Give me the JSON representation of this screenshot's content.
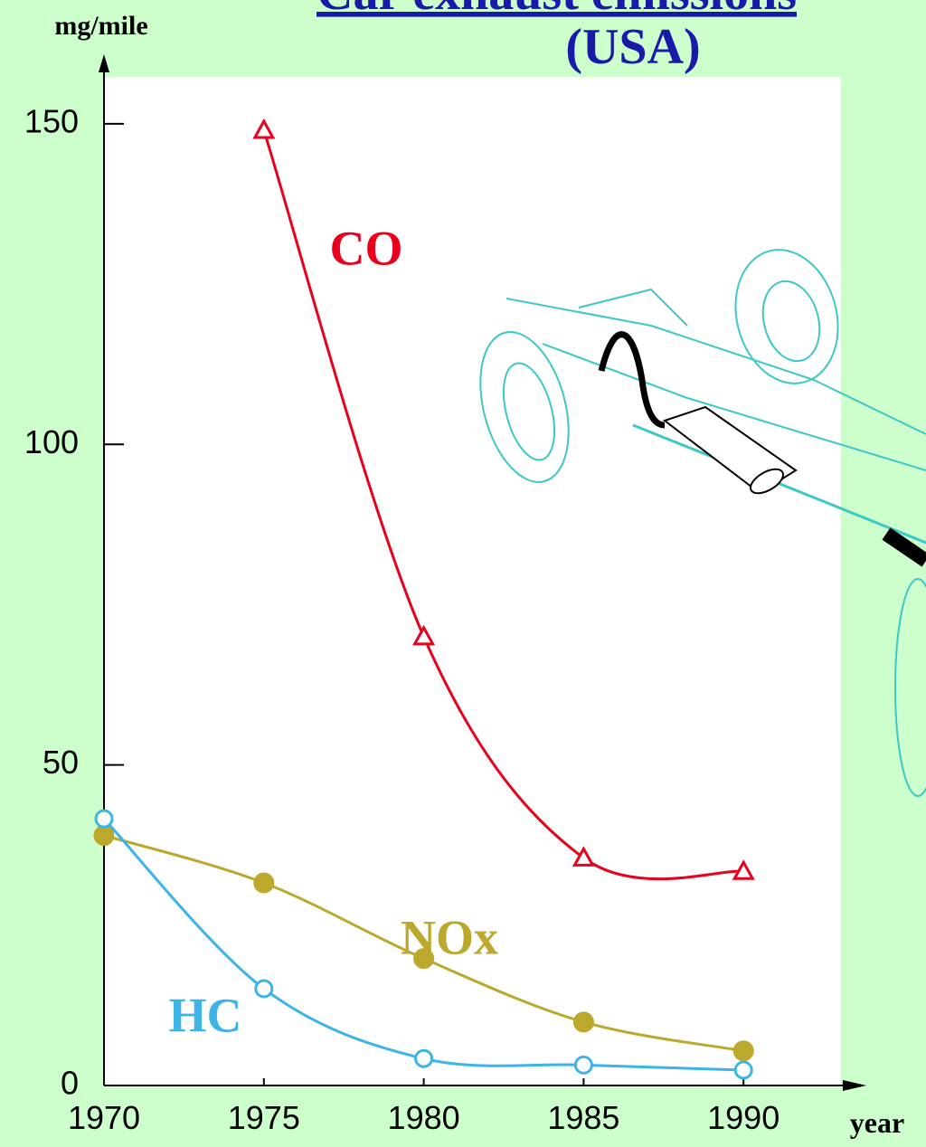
{
  "chart_data": {
    "type": "line",
    "title": "Car exhaust emissions",
    "subtitle": "(USA)",
    "y_label": "mg/mile",
    "x_label": "year",
    "x": [
      1970,
      1975,
      1980,
      1985,
      1990
    ],
    "series": [
      {
        "name": "CO",
        "color": "#e8001c",
        "marker": "triangle-open",
        "values": [
          null,
          149,
          70,
          35.5,
          33.4
        ]
      },
      {
        "name": "NOx",
        "color": "#bba82c",
        "marker": "circle-filled",
        "values": [
          39,
          31.6,
          19.8,
          9.9,
          5.4
        ]
      },
      {
        "name": "HC",
        "color": "#3cb4e6",
        "marker": "circle-open",
        "values": [
          41.6,
          15.1,
          4.2,
          3.2,
          2.4
        ]
      }
    ],
    "xlim": [
      1970,
      1993.5
    ],
    "ylim": [
      0,
      160
    ],
    "xticks": [
      1970,
      1975,
      1980,
      1985,
      1990
    ],
    "yticks": [
      0,
      50,
      100,
      150
    ]
  }
}
